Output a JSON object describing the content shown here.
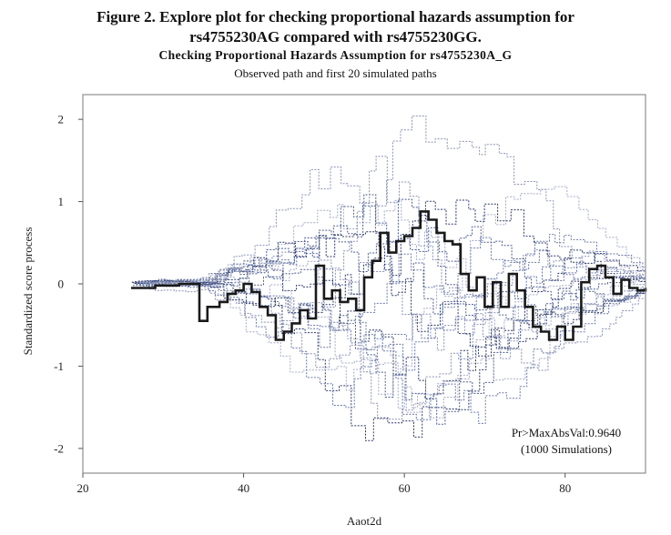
{
  "figure": {
    "caption_line_1": "Figure 2. Explore plot for checking proportional hazards assumption for",
    "caption_line_2": "rs4755230AG compared with rs4755230GG."
  },
  "chart_data": {
    "type": "line",
    "title": "Checking Proportional Hazards Assumption for rs4755230A_G",
    "subtitle": "Observed path and first 20 simulated paths",
    "xlabel": "Aaot2d",
    "ylabel": "Standardized score process",
    "xlim": [
      20,
      90
    ],
    "ylim": [
      -2.3,
      2.3
    ],
    "xticks": [
      20,
      40,
      60,
      80
    ],
    "yticks": [
      -2,
      -1,
      0,
      1,
      2
    ],
    "grid": false,
    "colors": {
      "observed": "#1a1a1a",
      "simulated": [
        "#4d5f8f",
        "#8a93b5",
        "#2c3a68",
        "#a5acc8",
        "#6b7aa8"
      ]
    },
    "annotation": {
      "line1": "Pr>MaxAbsVal:0.9640",
      "line2": "(1000 Simulations)"
    },
    "series": [
      {
        "role": "observed",
        "x": [
          26,
          27.5,
          29,
          31,
          32,
          34.5,
          35.5,
          37,
          38,
          39,
          40,
          41,
          42,
          43,
          44,
          45,
          46,
          47,
          48,
          49,
          50,
          51,
          52,
          53,
          54,
          55,
          56,
          57,
          58,
          59,
          60,
          61,
          62,
          63,
          64,
          65,
          66,
          67,
          68,
          69,
          70,
          71,
          72,
          73,
          74,
          75,
          76,
          77,
          78,
          79,
          80,
          81,
          82,
          83,
          84,
          85,
          86,
          87,
          88,
          89,
          90
        ],
        "y": [
          -0.05,
          -0.05,
          -0.02,
          -0.02,
          0.0,
          -0.45,
          -0.28,
          -0.22,
          -0.12,
          -0.08,
          0.0,
          -0.1,
          -0.28,
          -0.38,
          -0.68,
          -0.58,
          -0.48,
          -0.32,
          -0.42,
          0.22,
          -0.18,
          -0.08,
          -0.22,
          -0.18,
          -0.32,
          0.08,
          0.28,
          0.62,
          0.38,
          0.52,
          0.58,
          0.68,
          0.88,
          0.78,
          0.62,
          0.52,
          0.48,
          0.12,
          -0.08,
          0.08,
          -0.28,
          0.02,
          -0.28,
          0.12,
          -0.08,
          -0.28,
          -0.52,
          -0.58,
          -0.68,
          -0.52,
          -0.68,
          -0.52,
          0.02,
          0.18,
          0.22,
          0.08,
          -0.12,
          0.05,
          -0.05,
          -0.08,
          -0.05
        ]
      }
    ]
  }
}
